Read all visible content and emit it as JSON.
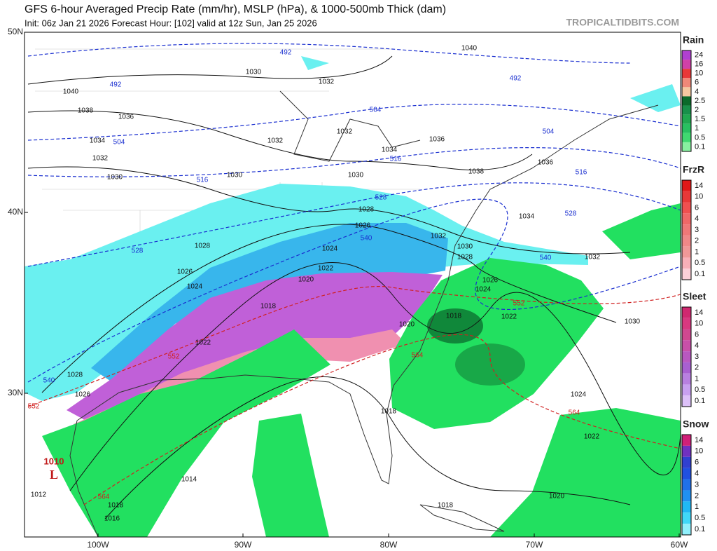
{
  "header": {
    "title": "GFS 6-hour Averaged Precip Rate (mm/hr), MSLP (hPa), & 1000-500mb Thick (dam)",
    "subtitle": "Init: 06z Jan 21 2026   Forecast Hour: [102]   valid at 12z Sun, Jan 25 2026",
    "site": "TROPICALTIDBITS.COM"
  },
  "axes": {
    "latitudes": [
      "50N",
      "40N",
      "30N"
    ],
    "longitudes": [
      "100W",
      "90W",
      "80W",
      "70W",
      "60W"
    ]
  },
  "legends": [
    {
      "title": "Rain",
      "levels": [
        24,
        16,
        10,
        6,
        4,
        2.5,
        2,
        1.5,
        1,
        0.5,
        0.1
      ]
    },
    {
      "title": "FrzR",
      "levels": [
        14,
        10,
        6,
        4,
        3,
        2,
        1,
        0.5,
        0.1
      ]
    },
    {
      "title": "Sleet",
      "levels": [
        14,
        10,
        6,
        4,
        3,
        2,
        1,
        0.5,
        0.1
      ]
    },
    {
      "title": "Snow",
      "levels": [
        14,
        10,
        6,
        4,
        3,
        2,
        1,
        0.5,
        0.1
      ]
    }
  ],
  "map_labels": {
    "isobars": [
      1040,
      1038,
      1036,
      1034,
      1032,
      1030,
      1030,
      1032,
      1032,
      1032,
      1034,
      1036,
      1038,
      1036,
      1034,
      1032,
      1030,
      1040,
      1030,
      1030,
      1028,
      1026,
      1024,
      1022,
      1020,
      1018,
      1022,
      1024,
      1026,
      1028,
      1028,
      1026,
      1018,
      1024,
      1022,
      1020,
      1018,
      1014,
      1012,
      1016,
      1018,
      1030,
      1028,
      1032,
      1026,
      1024,
      1018,
      1022,
      1020
    ],
    "thickness_blue": [
      492,
      492,
      492,
      504,
      504,
      504,
      516,
      516,
      516,
      528,
      528,
      528,
      540,
      540,
      540
    ],
    "thickness_red": [
      552,
      552,
      552,
      564,
      564,
      564
    ],
    "low": {
      "pressure": "1010",
      "symbol": "L"
    }
  }
}
